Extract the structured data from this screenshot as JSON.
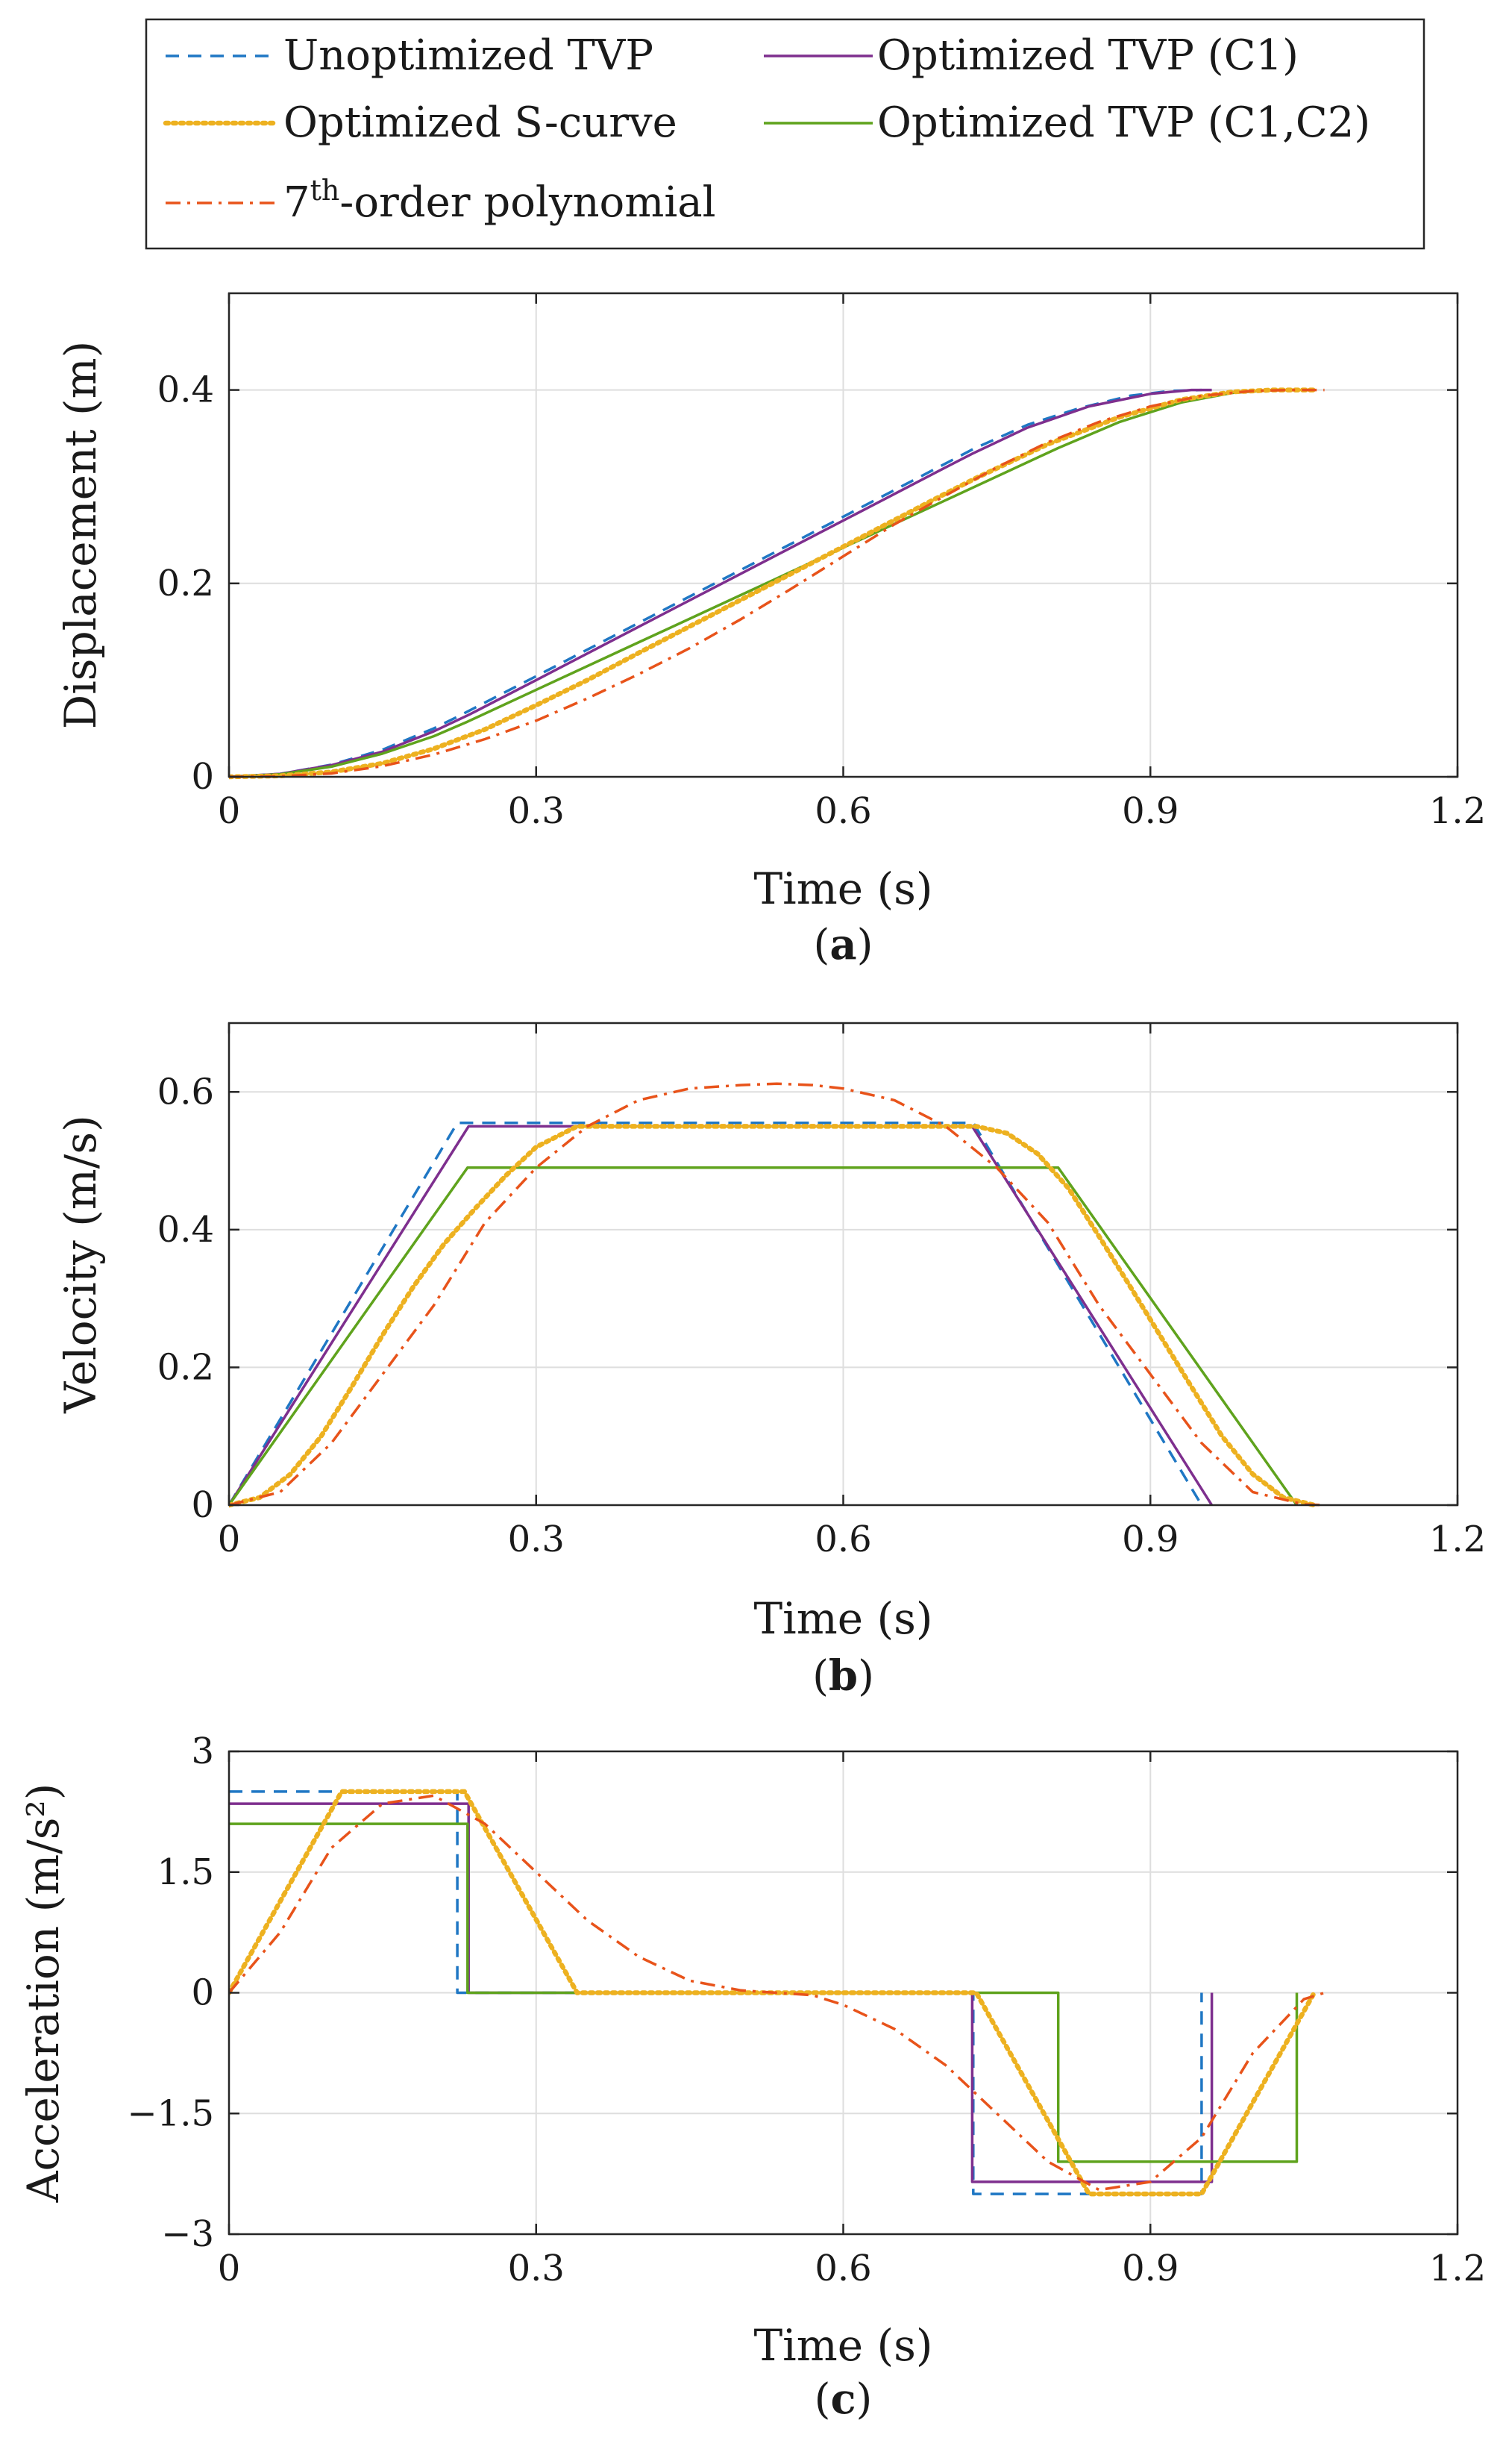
{
  "chart_data": [
    {
      "type": "line",
      "panel_label": "a",
      "title": "",
      "xlabel": "Time (s)",
      "ylabel": "Displacement (m)",
      "xlim": [
        0,
        1.2
      ],
      "ylim": [
        0,
        0.5
      ],
      "xticks": [
        0,
        0.3,
        0.6,
        0.9,
        1.2
      ],
      "xtick_labels": [
        "0",
        "0.3",
        "0.6",
        "0.9",
        "1.2"
      ],
      "yticks": [
        0,
        0.2,
        0.4
      ],
      "ytick_labels": [
        "0",
        "0.2",
        "0.4"
      ],
      "grid": true,
      "series": [
        {
          "name": "Unoptimized TVP",
          "x": [
            0,
            0.05,
            0.1,
            0.15,
            0.2,
            0.223,
            0.3,
            0.4,
            0.5,
            0.6,
            0.7,
            0.727,
            0.78,
            0.83,
            0.88,
            0.92,
            0.95
          ],
          "y": [
            0,
            0.003,
            0.0125,
            0.028,
            0.05,
            0.062,
            0.104,
            0.159,
            0.214,
            0.269,
            0.324,
            0.339,
            0.364,
            0.381,
            0.394,
            0.399,
            0.4
          ]
        },
        {
          "name": "Optimized TVP (C1)",
          "x": [
            0,
            0.05,
            0.1,
            0.15,
            0.2,
            0.234,
            0.3,
            0.4,
            0.5,
            0.6,
            0.7,
            0.726,
            0.78,
            0.84,
            0.9,
            0.94,
            0.96
          ],
          "y": [
            0,
            0.003,
            0.012,
            0.026,
            0.047,
            0.064,
            0.1,
            0.155,
            0.21,
            0.265,
            0.32,
            0.334,
            0.361,
            0.383,
            0.396,
            0.4,
            0.4
          ]
        },
        {
          "name": "Optimized TVP (C1,C2)",
          "x": [
            0,
            0.05,
            0.1,
            0.15,
            0.2,
            0.233,
            0.3,
            0.4,
            0.5,
            0.6,
            0.7,
            0.81,
            0.87,
            0.93,
            0.98,
            1.02,
            1.043
          ],
          "y": [
            0,
            0.0026,
            0.0105,
            0.024,
            0.042,
            0.057,
            0.09,
            0.139,
            0.188,
            0.237,
            0.286,
            0.34,
            0.367,
            0.387,
            0.397,
            0.4,
            0.4
          ]
        },
        {
          "name": "Optimized S-curve",
          "x": [
            0,
            0.05,
            0.1,
            0.15,
            0.2,
            0.25,
            0.3,
            0.35,
            0.4,
            0.5,
            0.6,
            0.7,
            0.73,
            0.8,
            0.87,
            0.93,
            0.98,
            1.02,
            1.06
          ],
          "y": [
            0,
            0.001,
            0.005,
            0.014,
            0.029,
            0.049,
            0.074,
            0.1,
            0.128,
            0.183,
            0.238,
            0.293,
            0.309,
            0.344,
            0.372,
            0.39,
            0.398,
            0.4,
            0.4
          ]
        },
        {
          "name": "7th-order polynomial",
          "x": [
            0,
            0.05,
            0.1,
            0.15,
            0.2,
            0.25,
            0.3,
            0.35,
            0.4,
            0.45,
            0.5,
            0.55,
            0.6,
            0.65,
            0.7,
            0.75,
            0.8,
            0.85,
            0.9,
            0.95,
            1.0,
            1.035,
            1.07
          ],
          "y": [
            0,
            0.0005,
            0.0035,
            0.011,
            0.023,
            0.039,
            0.058,
            0.081,
            0.106,
            0.133,
            0.163,
            0.195,
            0.228,
            0.261,
            0.291,
            0.32,
            0.346,
            0.367,
            0.383,
            0.394,
            0.399,
            0.4,
            0.4
          ]
        }
      ]
    },
    {
      "type": "line",
      "panel_label": "b",
      "title": "",
      "xlabel": "Time (s)",
      "ylabel": "Velocity (m/s)",
      "xlim": [
        0,
        1.2
      ],
      "ylim": [
        0,
        0.7
      ],
      "xticks": [
        0,
        0.3,
        0.6,
        0.9,
        1.2
      ],
      "xtick_labels": [
        "0",
        "0.3",
        "0.6",
        "0.9",
        "1.2"
      ],
      "yticks": [
        0,
        0.2,
        0.4,
        0.6
      ],
      "ytick_labels": [
        "0",
        "0.2",
        "0.4",
        "0.6"
      ],
      "grid": true,
      "series": [
        {
          "name": "Unoptimized TVP",
          "x": [
            0,
            0.223,
            0.727,
            0.95
          ],
          "y": [
            0,
            0.555,
            0.555,
            0
          ]
        },
        {
          "name": "Optimized TVP (C1)",
          "x": [
            0,
            0.234,
            0.726,
            0.96
          ],
          "y": [
            0,
            0.55,
            0.55,
            0
          ]
        },
        {
          "name": "Optimized TVP (C1,C2)",
          "x": [
            0,
            0.233,
            0.81,
            1.043
          ],
          "y": [
            0,
            0.49,
            0.49,
            0
          ]
        },
        {
          "name": "Optimized S-curve",
          "x": [
            0,
            0.03,
            0.06,
            0.09,
            0.12,
            0.15,
            0.18,
            0.21,
            0.24,
            0.27,
            0.3,
            0.34,
            0.5,
            0.73,
            0.76,
            0.79,
            0.82,
            0.85,
            0.88,
            0.91,
            0.94,
            0.97,
            1.0,
            1.03,
            1.06
          ],
          "y": [
            0,
            0.011,
            0.045,
            0.1,
            0.172,
            0.247,
            0.317,
            0.379,
            0.43,
            0.478,
            0.52,
            0.55,
            0.55,
            0.55,
            0.54,
            0.51,
            0.46,
            0.39,
            0.318,
            0.245,
            0.172,
            0.1,
            0.045,
            0.011,
            0
          ]
        },
        {
          "name": "7th-order polynomial",
          "x": [
            0,
            0.05,
            0.1,
            0.15,
            0.2,
            0.25,
            0.3,
            0.35,
            0.4,
            0.45,
            0.5,
            0.535,
            0.57,
            0.6,
            0.65,
            0.7,
            0.75,
            0.8,
            0.85,
            0.9,
            0.95,
            1.0,
            1.05,
            1.07
          ],
          "y": [
            0,
            0.019,
            0.09,
            0.19,
            0.29,
            0.41,
            0.49,
            0.55,
            0.588,
            0.605,
            0.61,
            0.612,
            0.61,
            0.605,
            0.588,
            0.55,
            0.49,
            0.41,
            0.29,
            0.19,
            0.09,
            0.019,
            0.001,
            0
          ]
        }
      ]
    },
    {
      "type": "line",
      "panel_label": "c",
      "title": "",
      "xlabel": "Time (s)",
      "ylabel": "Acceleration (m/s²)",
      "xlim": [
        0,
        1.2
      ],
      "ylim": [
        -3,
        3
      ],
      "xticks": [
        0,
        0.3,
        0.6,
        0.9,
        1.2
      ],
      "xtick_labels": [
        "0",
        "0.3",
        "0.6",
        "0.9",
        "1.2"
      ],
      "yticks": [
        3,
        1.5,
        0,
        -1.5,
        -3
      ],
      "ytick_labels": [
        "3",
        "1.5",
        "0",
        "−1.5",
        "−3"
      ],
      "grid": true,
      "series": [
        {
          "name": "Unoptimized TVP",
          "x": [
            0,
            0.223,
            0.223,
            0.727,
            0.727,
            0.95,
            0.95
          ],
          "y": [
            2.5,
            2.5,
            0,
            0,
            -2.5,
            -2.5,
            0
          ]
        },
        {
          "name": "Optimized TVP (C1)",
          "x": [
            0,
            0.234,
            0.234,
            0.726,
            0.726,
            0.96,
            0.96
          ],
          "y": [
            2.35,
            2.35,
            0,
            0,
            -2.35,
            -2.35,
            0
          ]
        },
        {
          "name": "Optimized TVP (C1,C2)",
          "x": [
            0,
            0.233,
            0.233,
            0.81,
            0.81,
            1.043,
            1.043
          ],
          "y": [
            2.1,
            2.1,
            0,
            0,
            -2.1,
            -2.1,
            0
          ]
        },
        {
          "name": "Optimized S-curve",
          "x": [
            0,
            0.11,
            0.23,
            0.34,
            0.73,
            0.84,
            0.95,
            1.06
          ],
          "y": [
            0,
            2.5,
            2.5,
            0,
            0,
            -2.5,
            -2.5,
            0
          ]
        },
        {
          "name": "7th-order polynomial",
          "x": [
            0,
            0.05,
            0.1,
            0.15,
            0.2,
            0.25,
            0.3,
            0.35,
            0.4,
            0.45,
            0.5,
            0.535,
            0.57,
            0.6,
            0.65,
            0.7,
            0.75,
            0.8,
            0.85,
            0.9,
            0.95,
            1.0,
            1.05,
            1.07
          ],
          "y": [
            0,
            0.75,
            1.8,
            2.35,
            2.45,
            2.1,
            1.5,
            0.9,
            0.45,
            0.15,
            0.03,
            0,
            -0.03,
            -0.15,
            -0.45,
            -0.9,
            -1.5,
            -2.1,
            -2.45,
            -2.35,
            -1.8,
            -0.75,
            -0.08,
            0
          ]
        }
      ]
    }
  ],
  "legend": {
    "placement": "top",
    "entries": [
      {
        "name": "Unoptimized TVP",
        "color": "#1f77c4",
        "style": "dashed"
      },
      {
        "name": "Optimized TVP (C1)",
        "color": "#7e2f8e",
        "style": "solid"
      },
      {
        "name": "Optimized S-curve",
        "color": "#edb120",
        "style": "dotted"
      },
      {
        "name": "Optimized TVP (C1,C2)",
        "color": "#5fa31d",
        "style": "solid"
      },
      {
        "name": "7th-order polynomial",
        "color": "#e8531a",
        "style": "dashdot"
      }
    ]
  }
}
